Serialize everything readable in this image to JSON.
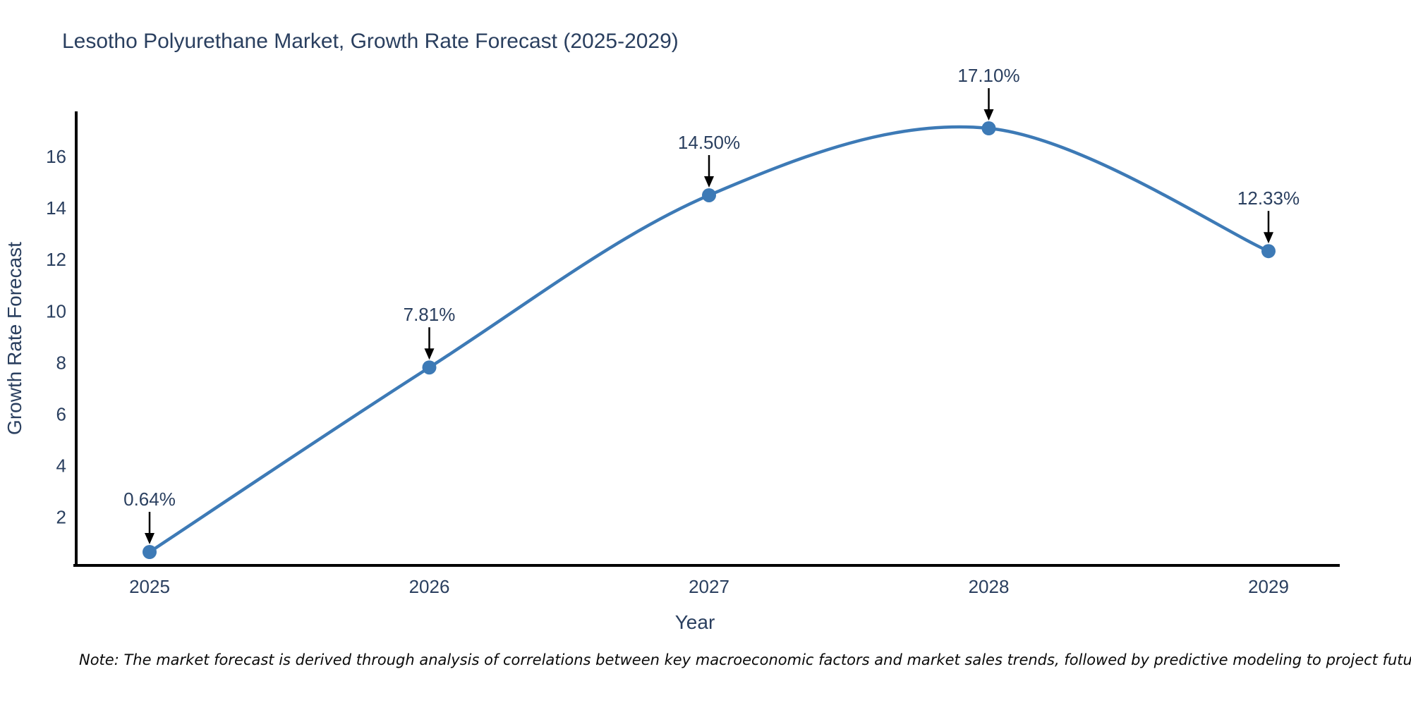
{
  "chart_data": {
    "type": "line",
    "line_shape": "spline",
    "title": "Lesotho Polyurethane Market, Growth Rate Forecast (2025-2029)",
    "xlabel": "Year",
    "ylabel": "Growth Rate Forecast",
    "x": [
      2025,
      2026,
      2027,
      2028,
      2029
    ],
    "series": [
      {
        "name": "Growth Rate Forecast",
        "values": [
          0.64,
          7.81,
          14.5,
          17.1,
          12.33
        ]
      }
    ],
    "point_labels": [
      "0.64%",
      "7.81%",
      "14.50%",
      "17.10%",
      "12.33%"
    ],
    "yticks": [
      2,
      4,
      6,
      8,
      10,
      12,
      14,
      16
    ],
    "ylim": [
      0.09,
      17.75
    ],
    "xlim": [
      2024.73,
      2029.27
    ],
    "grid": false,
    "legend_position": "none",
    "annotations_have_arrows": true,
    "colors": {
      "line": "#3d7ab6",
      "marker": "#3d7ab6",
      "annotation_arrow": "#000000",
      "text": "#2a3f5f",
      "axis": "#000000",
      "background": "#ffffff"
    },
    "note": "Note: The market forecast is derived through analysis of correlations between key macroeconomic factors and market sales trends, followed by predictive modeling to project future sales"
  }
}
